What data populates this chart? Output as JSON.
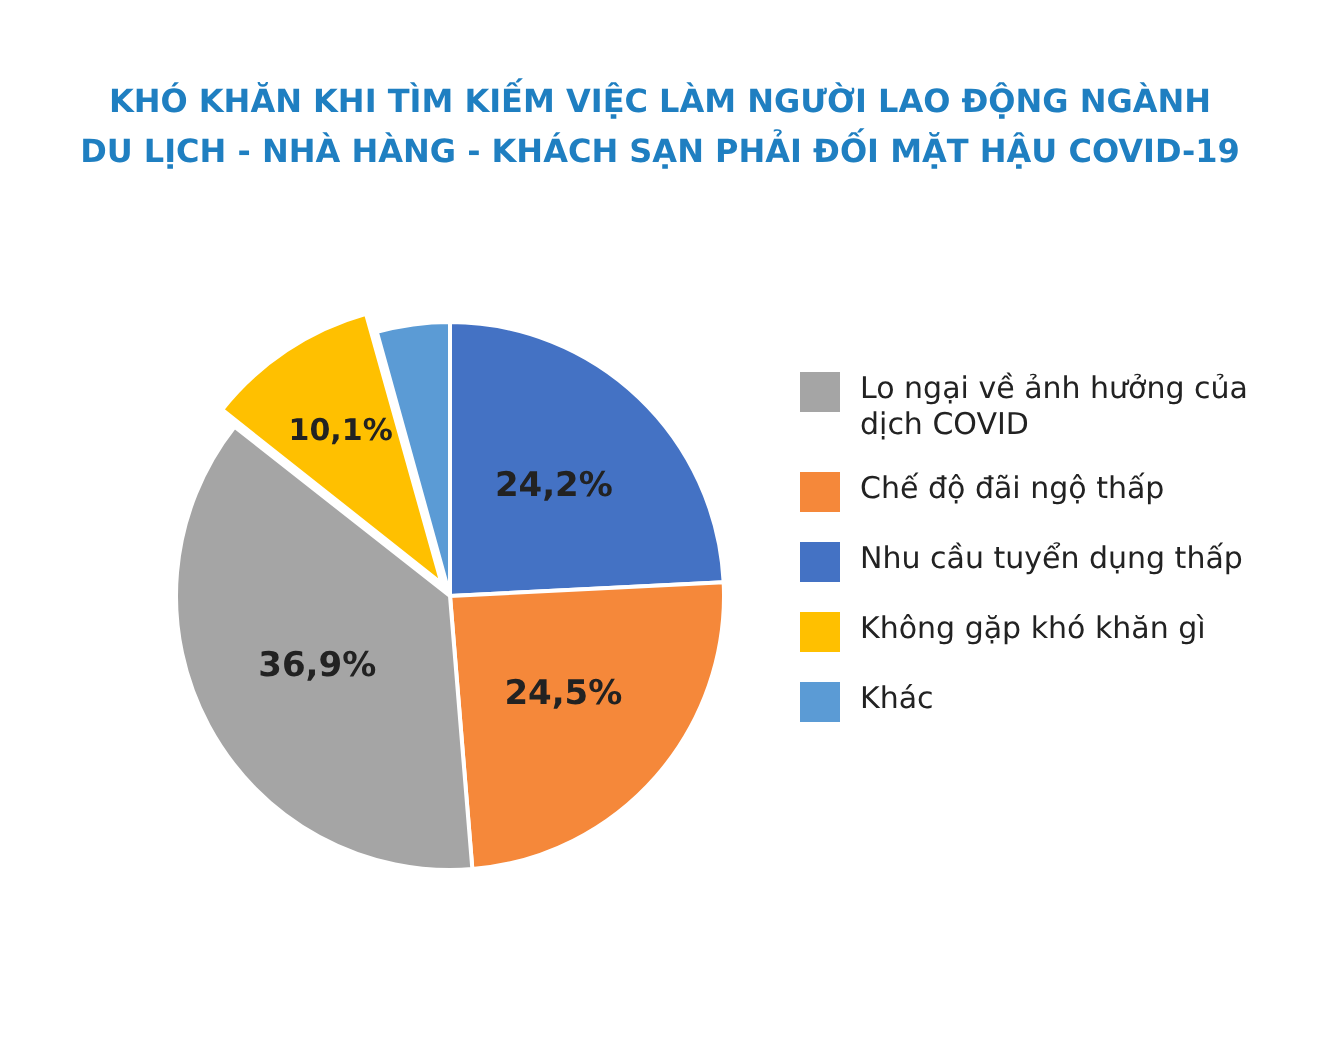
{
  "chart_data": {
    "type": "pie",
    "title": "KHÓ KHĂN KHI TÌM KIẾM VIỆC LÀM NGƯỜI LAO ĐỘNG NGÀNH\nDU LỊCH - NHÀ HÀNG - KHÁCH SẠN PHẢI ĐỐI MẶT HẬU COVID-19",
    "categories": [
      "Lo ngại về ảnh hưởng của dịch COVID",
      "Chế độ đãi ngộ thấp",
      "Nhu cầu tuyển dụng thấp",
      "Không gặp khó khăn gì",
      "Khác"
    ],
    "values": [
      36.9,
      24.5,
      24.2,
      10.1,
      4.3
    ],
    "colors": [
      "#a5a5a5",
      "#f5883a",
      "#4472c4",
      "#ffc000",
      "#5b9bd5"
    ],
    "value_labels": [
      "36,9%",
      "24,5%",
      "24,2%",
      "10,1%",
      null
    ],
    "legend": "right"
  }
}
